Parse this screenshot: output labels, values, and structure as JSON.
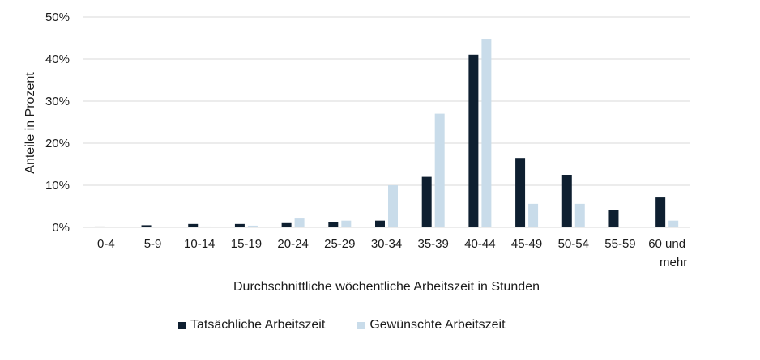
{
  "chart_data": {
    "type": "bar",
    "title": "",
    "xlabel": "Durchschnittliche wöchentliche Arbeitszeit in Stunden",
    "ylabel": "Anteile in Prozent",
    "ylim": [
      0,
      50
    ],
    "yticks": [
      "0%",
      "10%",
      "20%",
      "30%",
      "40%",
      "50%"
    ],
    "grid": true,
    "legend_position": "bottom",
    "categories": [
      "0-4",
      "5-9",
      "10-14",
      "15-19",
      "20-24",
      "25-29",
      "30-34",
      "35-39",
      "40-44",
      "45-49",
      "50-54",
      "55-59",
      "60 und mehr"
    ],
    "series": [
      {
        "name": "Tatsächliche Arbeitszeit",
        "color": "#0e1f30",
        "values": [
          0.2,
          0.5,
          0.8,
          0.8,
          1.0,
          1.3,
          1.6,
          12.0,
          41.0,
          16.5,
          12.5,
          4.2,
          7.1
        ]
      },
      {
        "name": "Gewünschte Arbeitszeit",
        "color": "#c9dcea",
        "values": [
          0.0,
          0.1,
          0.2,
          0.4,
          2.1,
          1.6,
          10.0,
          27.0,
          44.8,
          5.6,
          5.6,
          0.1,
          1.6
        ]
      }
    ]
  }
}
